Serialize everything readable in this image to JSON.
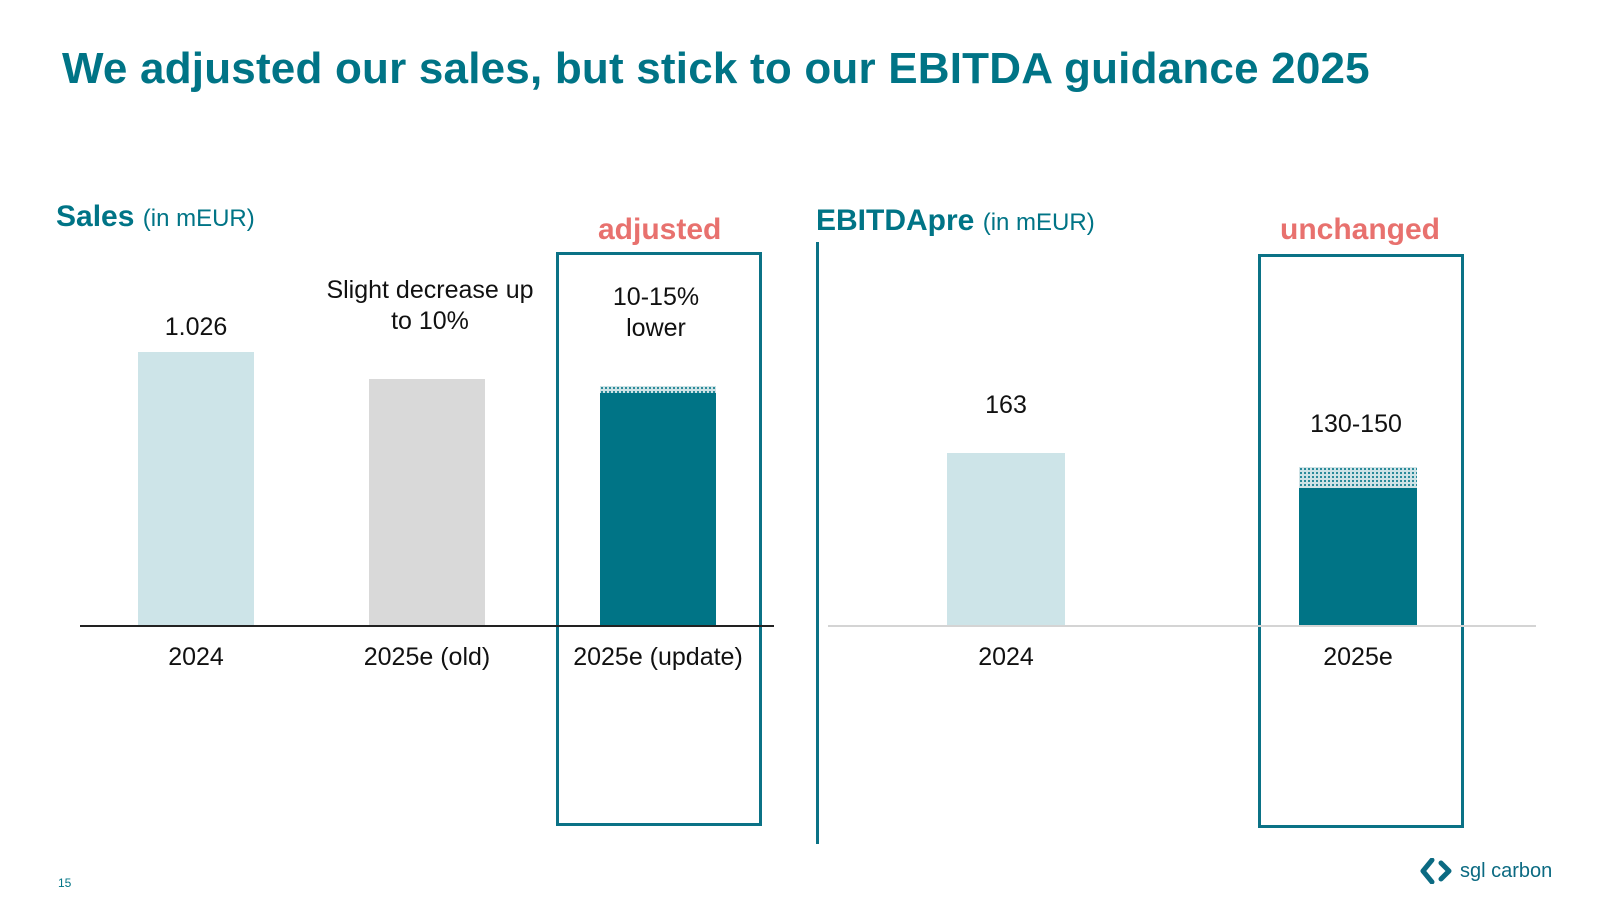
{
  "slide": {
    "title": "We adjusted our sales, but stick to our EBITDA guidance 2025",
    "page_number": "15",
    "logo_text": "sgl carbon"
  },
  "sales": {
    "title": "Sales",
    "unit": "(in mEUR)",
    "tag": "adjusted",
    "labels": [
      "1.026",
      "Slight decrease up to 10%",
      "10-15% lower"
    ]
  },
  "ebitda": {
    "title": "EBITDApre",
    "unit": "(in mEUR)",
    "tag": "unchanged",
    "labels": [
      "163",
      "130-150"
    ]
  },
  "colors": {
    "accent": "#007486",
    "highlight": "#e8716e",
    "actual": "#cde4e8",
    "old_guidance": "#d9d9d9",
    "new_guidance": "#007486"
  },
  "chart_data": [
    {
      "type": "bar",
      "title": "Sales (in mEUR)",
      "categories": [
        "2024",
        "2025e (old)",
        "2025e (update)"
      ],
      "values": [
        1026,
        923,
        898
      ],
      "range_upper": [
        null,
        null,
        872
      ],
      "value_labels": [
        "1.026",
        "Slight decrease up to 10%",
        "10-15% lower"
      ],
      "annotation": "adjusted",
      "ylim": [
        0,
        1026
      ]
    },
    {
      "type": "bar",
      "title": "EBITDApre (in mEUR)",
      "categories": [
        "2024",
        "2025e"
      ],
      "values": [
        163,
        150
      ],
      "range_upper": [
        null,
        130
      ],
      "value_labels": [
        "163",
        "130-150"
      ],
      "annotation": "unchanged",
      "ylim": [
        0,
        163
      ]
    }
  ]
}
